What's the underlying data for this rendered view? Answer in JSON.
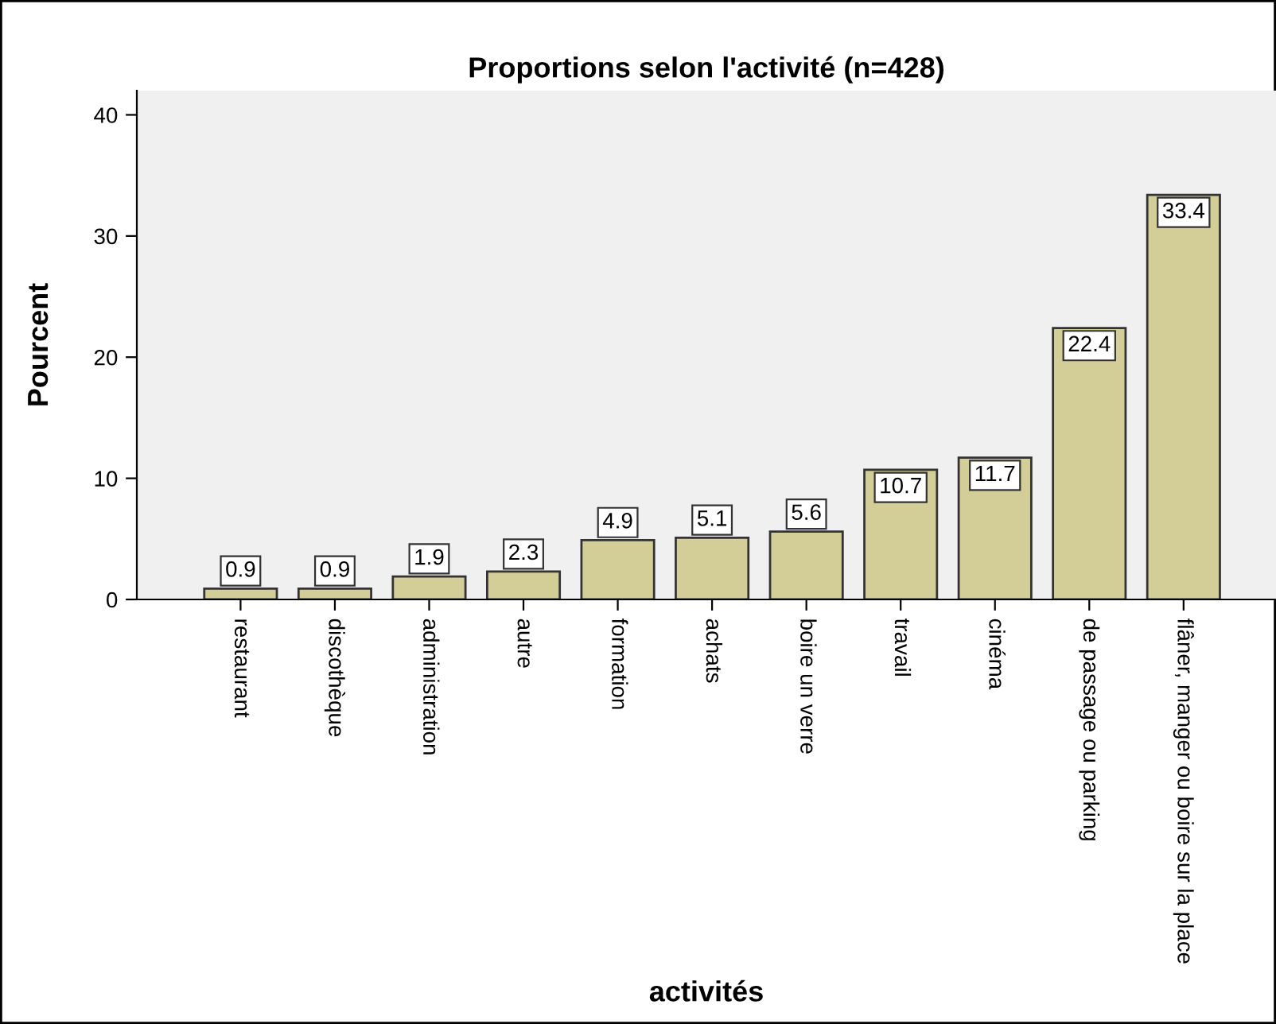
{
  "chart_data": {
    "type": "bar",
    "title": "Proportions selon l'activité (n=428)",
    "xlabel": "activités",
    "ylabel": "Pourcent",
    "categories": [
      "restaurant",
      "discothèque",
      "administration",
      "autre",
      "formation",
      "achats",
      "boire un verre",
      "travail",
      "cinéma",
      "de passage ou parking",
      "flâner, manger ou boire sur la place"
    ],
    "values": [
      0.9,
      0.9,
      1.9,
      2.3,
      4.9,
      5.1,
      5.6,
      10.7,
      11.7,
      22.4,
      33.4
    ],
    "color": "#d3ce97",
    "ylim": [
      0,
      42
    ],
    "yticks": [
      0,
      10,
      20,
      30,
      40
    ],
    "grid": false,
    "data_labels": true
  }
}
